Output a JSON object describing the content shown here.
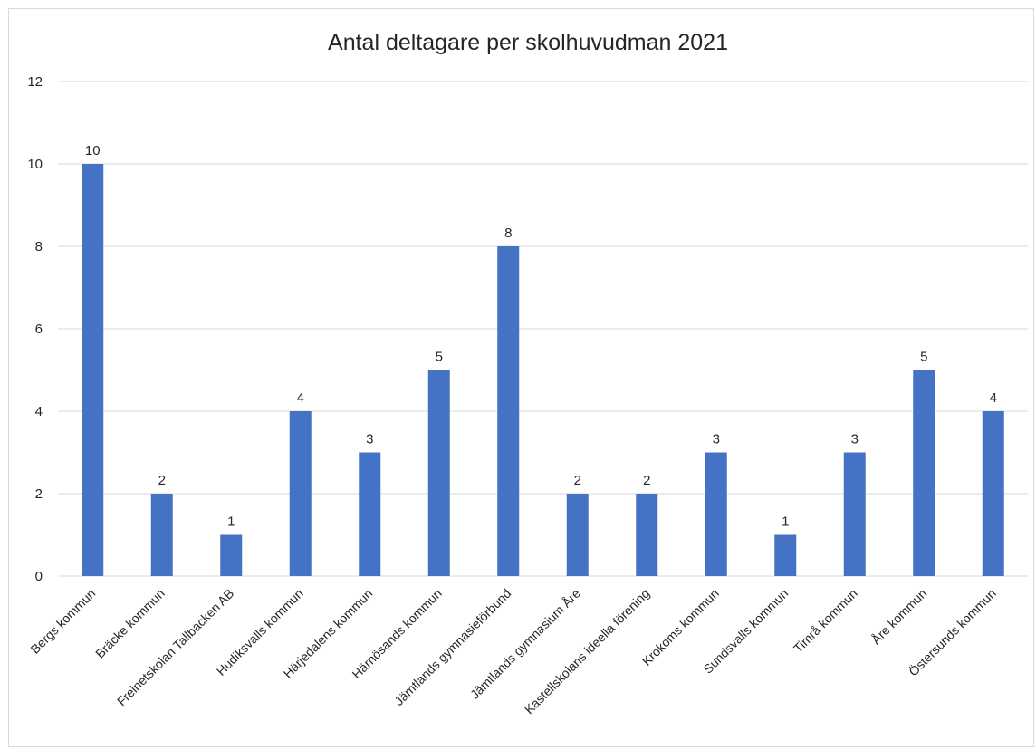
{
  "chart_data": {
    "type": "bar",
    "title": "Antal deltagare per skolhuvudman 2021",
    "xlabel": "",
    "ylabel": "",
    "ylim": [
      0,
      12
    ],
    "yticks": [
      0,
      2,
      4,
      6,
      8,
      10,
      12
    ],
    "grid": true,
    "legend": "none",
    "bar_color": "#4472c4",
    "categories": [
      "Bergs kommun",
      "Bräcke kommun",
      "Freinetskolan Tallbacken AB",
      "Hudiksvalls kommun",
      "Härjedalens kommun",
      "Härnösands kommun",
      "Jämtlands gymnasieförbund",
      "Jämtlands gymnasium Åre",
      "Kastellskolans ideella förening",
      "Krokoms kommun",
      "Sundsvalls kommun",
      "Timrå kommun",
      "Åre kommun",
      "Östersunds kommun"
    ],
    "values": [
      10,
      2,
      1,
      4,
      3,
      5,
      8,
      2,
      2,
      3,
      1,
      3,
      5,
      4
    ]
  }
}
